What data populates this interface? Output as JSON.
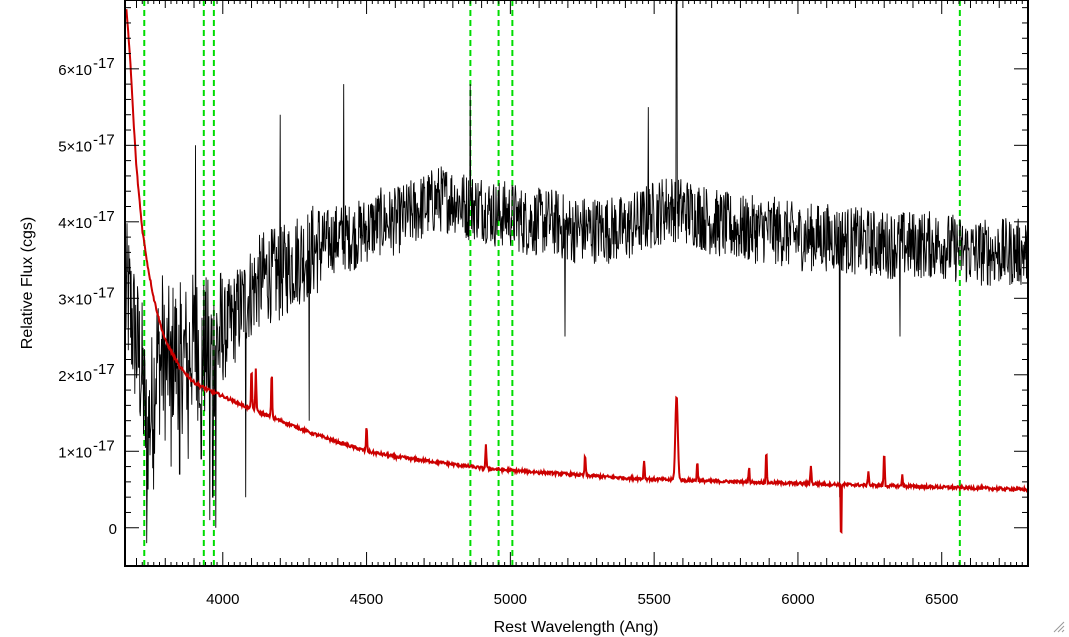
{
  "chart_data": {
    "type": "line",
    "title": "",
    "xlabel": "Rest Wavelength (Ang)",
    "ylabel": "Relative Flux (cgs)",
    "xlim": [
      3660,
      6800
    ],
    "ylim": [
      -5e-18,
      6.9e-17
    ],
    "grid": false,
    "legend": "none",
    "x_ticks": [
      {
        "value": 4000,
        "label": "4000"
      },
      {
        "value": 4500,
        "label": "4500"
      },
      {
        "value": 5000,
        "label": "5000"
      },
      {
        "value": 5500,
        "label": "5500"
      },
      {
        "value": 6000,
        "label": "6000"
      },
      {
        "value": 6500,
        "label": "6500"
      }
    ],
    "y_ticks": [
      {
        "value": 0,
        "mant": "0",
        "exp": ""
      },
      {
        "value": 1e-17,
        "mant": "1×10",
        "exp": "-17"
      },
      {
        "value": 2e-17,
        "mant": "2×10",
        "exp": "-17"
      },
      {
        "value": 3e-17,
        "mant": "3×10",
        "exp": "-17"
      },
      {
        "value": 4e-17,
        "mant": "4×10",
        "exp": "-17"
      },
      {
        "value": 5e-17,
        "mant": "5×10",
        "exp": "-17"
      },
      {
        "value": 6e-17,
        "mant": "6×10",
        "exp": "-17"
      }
    ],
    "series": [
      {
        "color": "#000000",
        "style": "noisy spectrum",
        "x": [
          3670,
          3700,
          3720,
          3735,
          3750,
          3770,
          3800,
          3830,
          3860,
          3900,
          3950,
          4000,
          4050,
          4100,
          4150,
          4200,
          4250,
          4300,
          4350,
          4400,
          4450,
          4500,
          4550,
          4600,
          4650,
          4700,
          4750,
          4800,
          4850,
          4900,
          4950,
          5000,
          5050,
          5100,
          5150,
          5200,
          5300,
          5400,
          5500,
          5550,
          5600,
          5650,
          5700,
          5800,
          5900,
          6000,
          6100,
          6200,
          6300,
          6400,
          6500,
          6600,
          6700,
          6800
        ],
        "y": [
          3e-17,
          2.4e-17,
          2e-17,
          1.2e-17,
          1.5e-17,
          2.2e-17,
          2.1e-17,
          2.3e-17,
          2.2e-17,
          2.4e-17,
          2.3e-17,
          2.5e-17,
          2.8e-17,
          3.1e-17,
          3.3e-17,
          3.3e-17,
          3.5e-17,
          3.6e-17,
          3.7e-17,
          3.8e-17,
          3.8e-17,
          3.9e-17,
          4e-17,
          4e-17,
          4.1e-17,
          4.2e-17,
          4.3e-17,
          4.3e-17,
          4.2e-17,
          4.2e-17,
          4.1e-17,
          4.1e-17,
          4e-17,
          4e-17,
          4e-17,
          3.9e-17,
          3.9e-17,
          3.9e-17,
          4.1e-17,
          4.2e-17,
          4.15e-17,
          4.1e-17,
          4e-17,
          3.9e-17,
          3.9e-17,
          3.8e-17,
          3.8e-17,
          3.75e-17,
          3.7e-17,
          3.7e-17,
          3.7e-17,
          3.6e-17,
          3.6e-17,
          3.6e-17
        ],
        "noise": 4.5e-18,
        "spikes": [
          {
            "x": 3735,
            "y": -2e-18
          },
          {
            "x": 3760,
            "y": 5e-18
          },
          {
            "x": 3790,
            "y": 3.3e-17
          },
          {
            "x": 3820,
            "y": 8e-18
          },
          {
            "x": 3850,
            "y": 7e-18
          },
          {
            "x": 3880,
            "y": 9e-18
          },
          {
            "x": 3905,
            "y": 5e-17
          },
          {
            "x": 3925,
            "y": 9e-18
          },
          {
            "x": 3955,
            "y": 1e-18
          },
          {
            "x": 3965,
            "y": 4e-18
          },
          {
            "x": 3975,
            "y": 0.0
          },
          {
            "x": 4080,
            "y": 4e-18
          },
          {
            "x": 4200,
            "y": 5.4e-17
          },
          {
            "x": 4300,
            "y": 1.4e-17
          },
          {
            "x": 4420,
            "y": 5.8e-17
          },
          {
            "x": 4860,
            "y": 5.8e-17
          },
          {
            "x": 5190,
            "y": 2.5e-17
          },
          {
            "x": 5480,
            "y": 5.5e-17
          },
          {
            "x": 5578,
            "y": 8e-17
          },
          {
            "x": 6145,
            "y": 4e-18
          },
          {
            "x": 6355,
            "y": 2.5e-17
          }
        ]
      },
      {
        "color": "#cc0000",
        "style": "smooth continuum model",
        "x": [
          3665,
          3680,
          3690,
          3700,
          3710,
          3720,
          3740,
          3760,
          3780,
          3800,
          3850,
          3900,
          3950,
          4000,
          4100,
          4200,
          4300,
          4400,
          4500,
          4600,
          4700,
          4800,
          4900,
          5000,
          5200,
          5400,
          5600,
          5800,
          6000,
          6200,
          6400,
          6600,
          6800
        ],
        "y": [
          6.8e-17,
          6e-17,
          5.3e-17,
          4.7e-17,
          4.3e-17,
          3.9e-17,
          3.4e-17,
          3e-17,
          2.7e-17,
          2.45e-17,
          2.1e-17,
          1.9e-17,
          1.8e-17,
          1.72e-17,
          1.55e-17,
          1.4e-17,
          1.25e-17,
          1.12e-17,
          1e-17,
          9.3e-18,
          8.8e-18,
          8.3e-18,
          7.8e-18,
          7.5e-18,
          7e-18,
          6.5e-18,
          6.2e-18,
          6e-18,
          5.8e-18,
          5.6e-18,
          5.4e-18,
          5.2e-18,
          5e-18
        ],
        "features": [
          {
            "x": 4100,
            "dy": 5.5e-18
          },
          {
            "x": 4115,
            "dy": 5.5e-18
          },
          {
            "x": 4170,
            "dy": 6e-18
          },
          {
            "x": 4500,
            "dy": 3.3e-18
          },
          {
            "x": 4915,
            "dy": 3e-18
          },
          {
            "x": 5260,
            "dy": 2.8e-18
          },
          {
            "x": 5465,
            "dy": 2.5e-18
          },
          {
            "x": 5578,
            "dy": 1.1e-17
          },
          {
            "x": 5650,
            "dy": 2.5e-18
          },
          {
            "x": 5830,
            "dy": 2e-18
          },
          {
            "x": 5890,
            "dy": 4e-18
          },
          {
            "x": 6045,
            "dy": 2.5e-18
          },
          {
            "x": 6150,
            "dy": -9.5e-18
          },
          {
            "x": 6245,
            "dy": 2e-18
          },
          {
            "x": 6300,
            "dy": 4.5e-18
          },
          {
            "x": 6363,
            "dy": 1.5e-18
          }
        ]
      }
    ],
    "reference_lines": {
      "color": "#00dd00",
      "style": "dashed",
      "x": [
        3727,
        3934,
        3969,
        4861,
        4959,
        5007,
        6563
      ]
    }
  }
}
